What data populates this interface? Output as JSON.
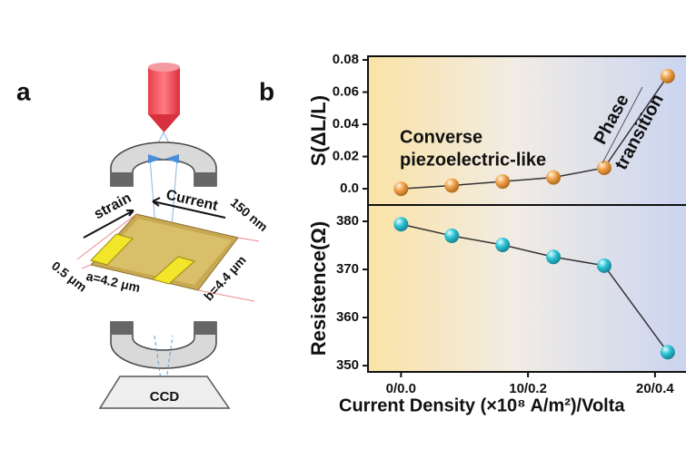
{
  "panel_labels": [
    "a",
    "b"
  ],
  "diagram": {
    "strain": "strain",
    "current": "Current",
    "thickness": "150 nm",
    "gap": "0.5 μm",
    "a": "a=4.2 μm",
    "b": "b=4.4 μm",
    "ccd": "CCD"
  },
  "chart_data": [
    {
      "type": "line",
      "ylabel": "S(ΔL/L)",
      "color": "#f0a24a",
      "line_color": "#333333",
      "x": [
        0,
        4,
        8,
        12,
        16,
        21
      ],
      "values": [
        0.0,
        0.002,
        0.0045,
        0.007,
        0.013,
        0.07
      ],
      "xlim": [
        -2.6,
        22.8
      ],
      "ylim": [
        -0.0101,
        0.0823
      ],
      "yticks": [
        {
          "value": 0,
          "label": "0.0"
        },
        0.02,
        0.04,
        0.06,
        0.08
      ],
      "annotations": [
        "Converse",
        "piezoelectric-like",
        "Phase",
        "transition"
      ]
    },
    {
      "type": "line",
      "ylabel": "Resistence(Ω)",
      "xlabel": "Current Density (×10⁸ A/m²)/Volta",
      "color": "#2ec4d6",
      "line_color": "#333333",
      "x": [
        0,
        4,
        8,
        12,
        16,
        21
      ],
      "values": [
        379.4,
        377,
        375.1,
        372.6,
        370.8,
        352.8
      ],
      "xlim": [
        -2.6,
        22.8
      ],
      "ylim": [
        348.7,
        383.4
      ],
      "xticks": [
        {
          "value": 0,
          "label": "0/0.0"
        },
        {
          "value": 10,
          "label": "10/0.2"
        },
        {
          "value": 20,
          "label": "20/0.4"
        }
      ],
      "yticks": [
        350,
        360,
        370,
        380
      ]
    }
  ]
}
